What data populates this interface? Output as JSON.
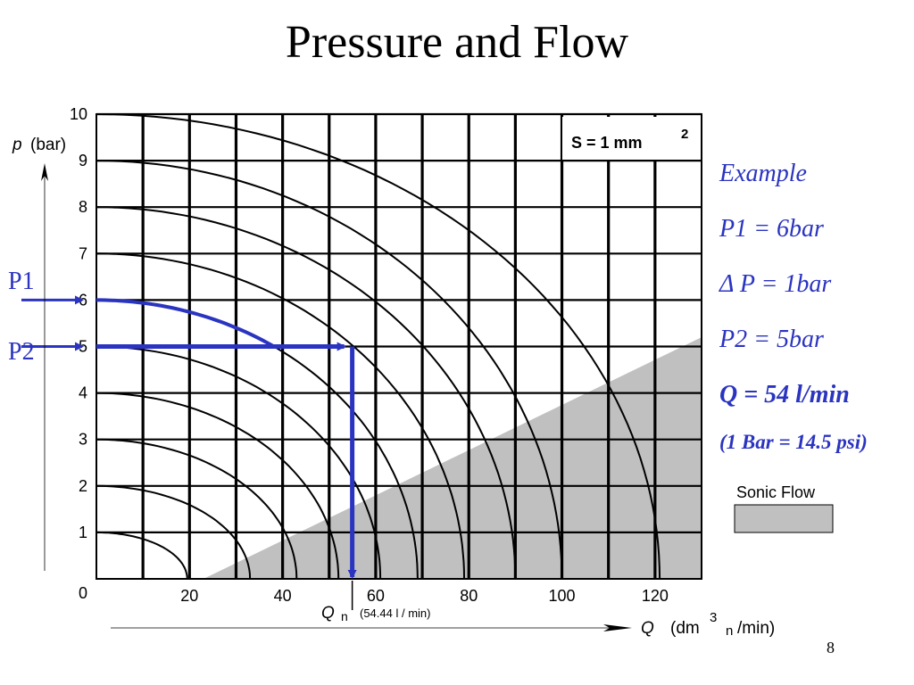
{
  "slide": {
    "title": "Pressure and Flow",
    "page_number": "8"
  },
  "colors": {
    "accent_blue": "#2b34c0",
    "sonic_region": "#c0c0c0",
    "grid": "#000000"
  },
  "markers": {
    "p1": "P1",
    "p2": "P2"
  },
  "example": {
    "heading": "Example",
    "line1": "P1 = 6bar",
    "line2": "Δ P = 1bar",
    "line3": "P2 = 5bar",
    "line4": "Q = 54  l/min",
    "line5": "(1 Bar = 14.5 psi)"
  },
  "chart_data": {
    "type": "line",
    "title": "",
    "area_label": "S = 1 mm",
    "area_label_sup": "2",
    "ylabel": "p",
    "ylabel_unit": "(bar)",
    "xlabel": "Q",
    "xlabel_unit_pre": "(dm",
    "xlabel_unit_sup": "3",
    "xlabel_unit_sub": "n",
    "xlabel_unit_post": "/min)",
    "qn_label": "Q",
    "qn_sub": "n",
    "qn_value": "(54.44 l /  min)",
    "xlim": [
      0,
      130
    ],
    "ylim": [
      0,
      10
    ],
    "x_ticks": [
      "20",
      "40",
      "60",
      "80",
      "100",
      "120"
    ],
    "x_tick_values": [
      20,
      40,
      60,
      80,
      100,
      120
    ],
    "origin_label": "0",
    "y_ticks": [
      "1",
      "2",
      "3",
      "4",
      "5",
      "6",
      "7",
      "8",
      "9",
      "10"
    ],
    "y_tick_values": [
      1,
      2,
      3,
      4,
      5,
      6,
      7,
      8,
      9,
      10
    ],
    "grid": true,
    "upstream_pressures": [
      1,
      2,
      3,
      4,
      5,
      6,
      7,
      8,
      9,
      10
    ],
    "max_flow": [
      19.5,
      33,
      43,
      52,
      61,
      69,
      79,
      90,
      100,
      121
    ],
    "sonic_boundary": [
      [
        23,
        0
      ],
      [
        130,
        5.2
      ]
    ],
    "sonic_label": "Sonic Flow",
    "example": {
      "p1": 6,
      "p2": 5,
      "q": 54
    }
  }
}
